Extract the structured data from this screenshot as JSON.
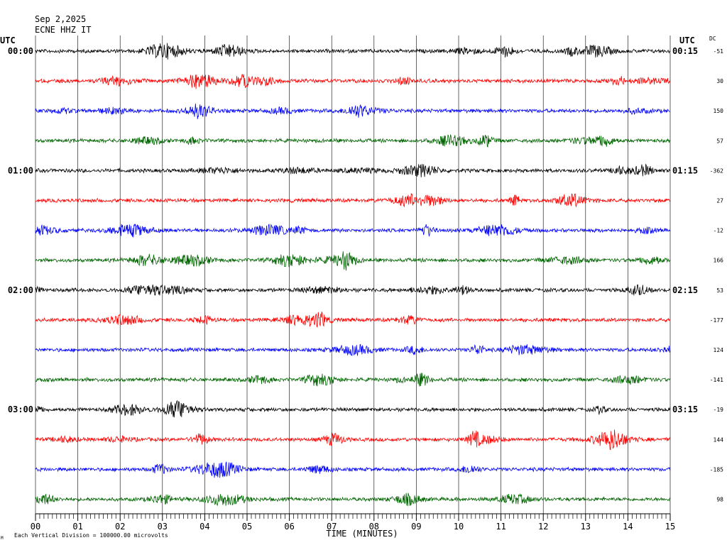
{
  "header": {
    "date": "Sep 2,2025",
    "station": "ECNE HHZ IT"
  },
  "chart_data": {
    "type": "line",
    "title": "",
    "xlabel": "TIME (MINUTES)",
    "ylabel": "",
    "xlim": [
      0,
      15
    ],
    "x_ticks": [
      "00",
      "01",
      "02",
      "03",
      "04",
      "05",
      "06",
      "07",
      "08",
      "09",
      "10",
      "11",
      "12",
      "13",
      "14",
      "15"
    ],
    "left_axis_title": "UTC",
    "right_axis_title": "UTC",
    "dc_header": "DC",
    "left_hour_labels": [
      "00:00",
      "01:00",
      "02:00",
      "03:00"
    ],
    "right_hour_labels": [
      "00:15",
      "01:15",
      "02:15",
      "03:15"
    ],
    "trace_colors": [
      "#000000",
      "#ff0000",
      "#0000ff",
      "#006400"
    ],
    "dc_offsets": [
      "-51",
      "30",
      "150",
      "57",
      "-362",
      "27",
      "-12",
      "166",
      "53",
      "-177",
      "124",
      "-141",
      "-19",
      "144",
      "-185",
      "98"
    ],
    "scale_note": "Each Vertical Division = 100000.00 microvolts",
    "corner_mark": "M"
  }
}
